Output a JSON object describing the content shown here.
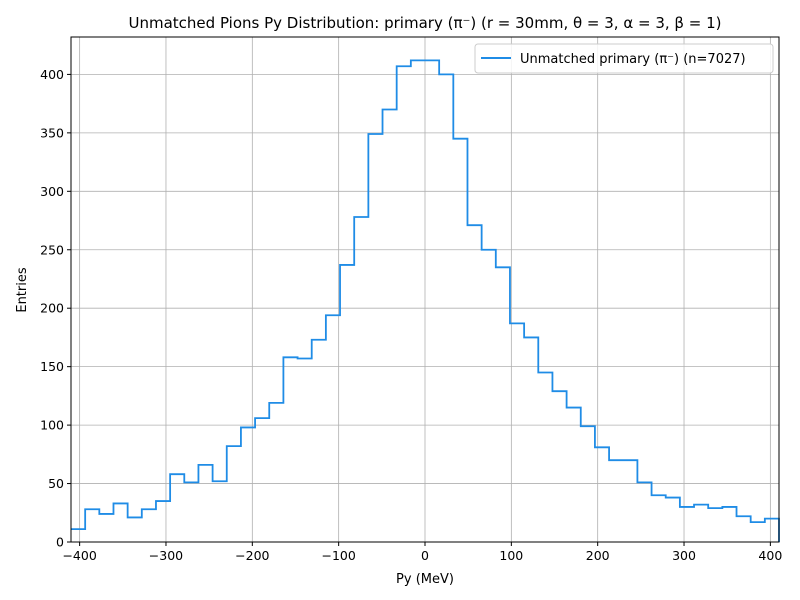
{
  "chart_data": {
    "type": "histogram",
    "title": "Unmatched Pions Py Distribution: primary (π⁻) (r = 30mm, θ = 3, α = 3, β = 1)",
    "xlabel": "Py (MeV)",
    "ylabel": "Entries",
    "xlim": [
      -410,
      410
    ],
    "ylim": [
      0,
      432
    ],
    "xticks": [
      -400,
      -300,
      -200,
      -100,
      0,
      100,
      200,
      300,
      400
    ],
    "xtick_labels": [
      "−400",
      "−300",
      "−200",
      "−100",
      "0",
      "100",
      "200",
      "300",
      "400"
    ],
    "yticks": [
      0,
      50,
      100,
      150,
      200,
      250,
      300,
      350,
      400
    ],
    "ytick_labels": [
      "0",
      "50",
      "100",
      "150",
      "200",
      "250",
      "300",
      "350",
      "400"
    ],
    "grid": true,
    "legend_position": "top-right",
    "series": [
      {
        "name": "Unmatched primary (π⁻) (n=7027)",
        "color": "#1f8ce6",
        "bin_edges": [
          -410,
          -393.6,
          -377.2,
          -360.8,
          -344.4,
          -328,
          -311.6,
          -295.2,
          -278.8,
          -262.4,
          -246,
          -229.6,
          -213.2,
          -196.8,
          -180.4,
          -164,
          -147.6,
          -131.2,
          -114.8,
          -98.4,
          -82,
          -65.6,
          -49.2,
          -32.8,
          -16.4,
          0,
          16.4,
          32.8,
          49.2,
          65.6,
          82,
          98.4,
          114.8,
          131.2,
          147.6,
          164,
          180.4,
          196.8,
          213.2,
          229.6,
          246,
          262.4,
          278.8,
          295.2,
          311.6,
          328,
          344.4,
          360.8,
          377.2,
          393.6,
          410
        ],
        "values": [
          11,
          28,
          24,
          33,
          21,
          28,
          35,
          58,
          51,
          66,
          52,
          82,
          98,
          106,
          119,
          158,
          157,
          173,
          194,
          237,
          278,
          349,
          370,
          407,
          412,
          412,
          400,
          345,
          271,
          250,
          235,
          187,
          175,
          145,
          129,
          115,
          99,
          81,
          70,
          70,
          51,
          40,
          38,
          30,
          32,
          29,
          30,
          22,
          17,
          20
        ]
      }
    ]
  }
}
